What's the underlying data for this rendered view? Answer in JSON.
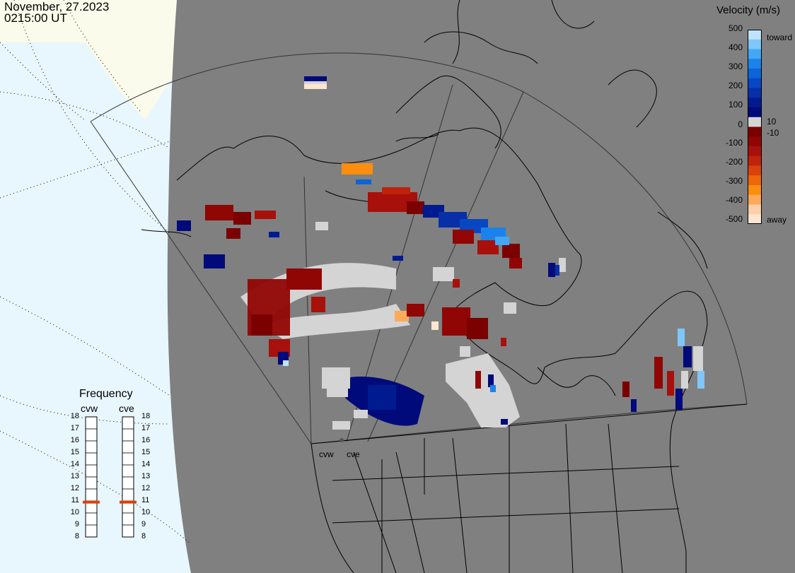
{
  "header": {
    "date": "November, 27.2023",
    "time": "0215:00 UT"
  },
  "colorbar": {
    "title": "Velocity (m/s)",
    "ticks": [
      "500",
      "400",
      "300",
      "200",
      "100",
      "10",
      "0",
      "-10",
      "-100",
      "-200",
      "-300",
      "-400",
      "-500"
    ],
    "toward_label": "toward",
    "away_label": "away",
    "colors": [
      "#fde6cf",
      "#fbd0a8",
      "#fca95a",
      "#fb8d0f",
      "#f0660a",
      "#d9420c",
      "#c0220c",
      "#a8100b",
      "#900605",
      "#7b0000",
      "#d4d4d4",
      "#000a7a",
      "#001b8f",
      "#062fa8",
      "#0847c4",
      "#0c64d8",
      "#1b82ec",
      "#42a7f5",
      "#7fc7fb",
      "#bfe3fd"
    ]
  },
  "frequency": {
    "title": "Frequency",
    "radars": [
      {
        "name": "cvw",
        "value": 10.9
      },
      {
        "name": "cve",
        "value": 10.9
      }
    ],
    "scale": [
      "18",
      "17",
      "16",
      "15",
      "14",
      "13",
      "12",
      "11",
      "10",
      "9",
      "8"
    ]
  },
  "map": {
    "radar_labels": [
      "cvw",
      "cve"
    ],
    "background_color": "#808080",
    "dayside_color": "#e8f6fe",
    "land_light_color": "#fbfbeb"
  }
}
